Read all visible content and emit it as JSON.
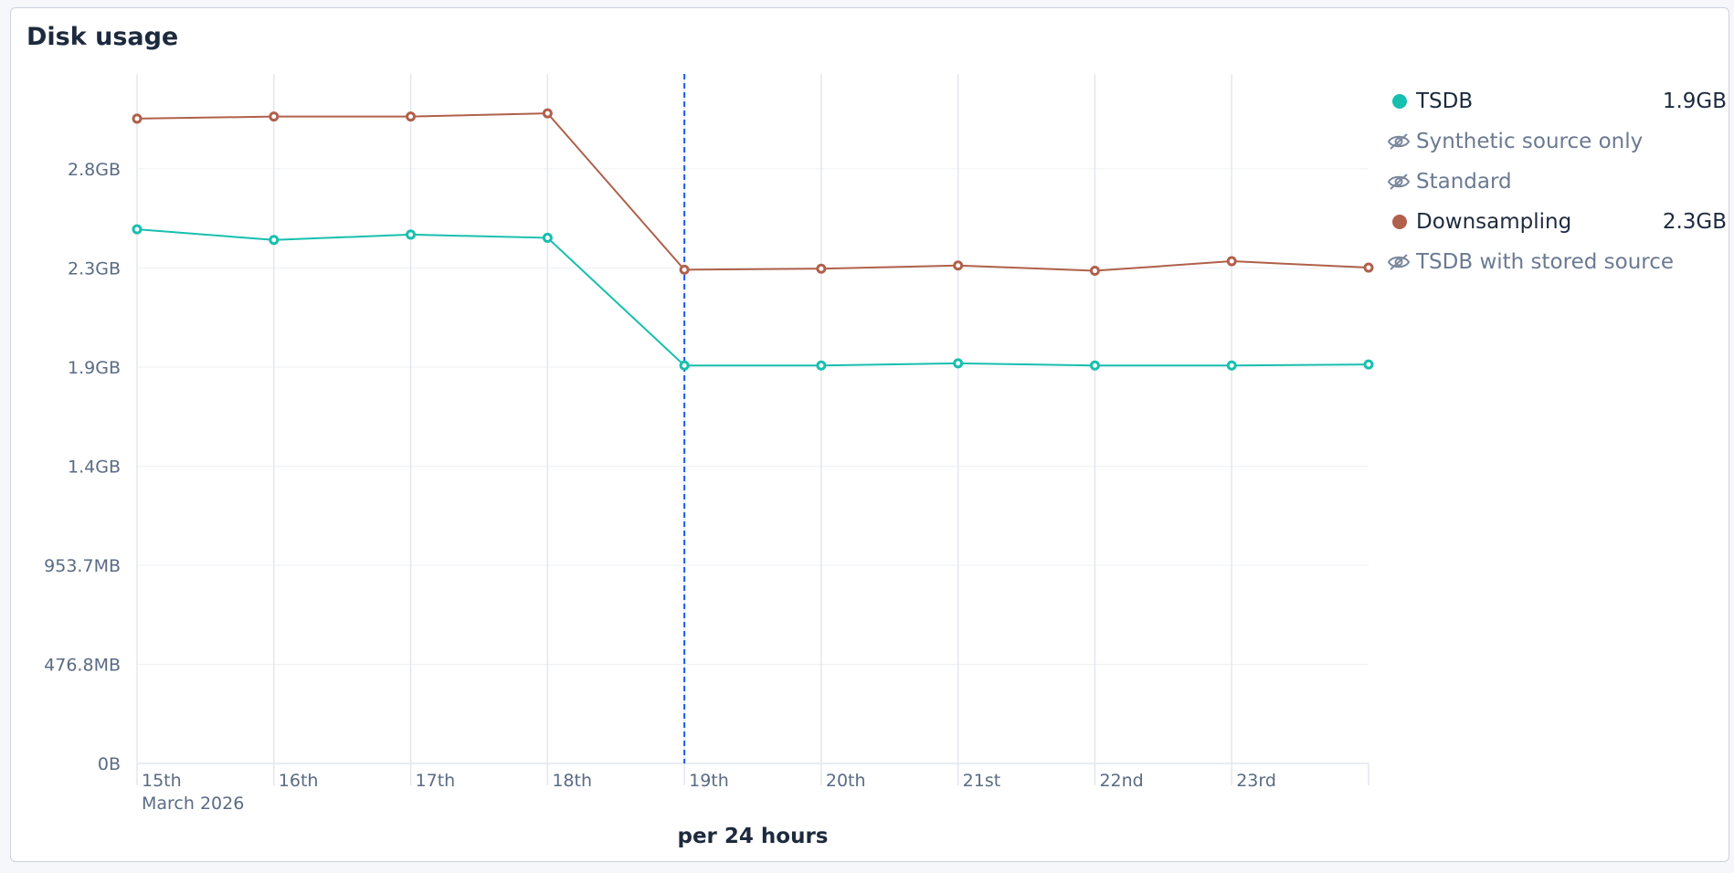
{
  "panel": {
    "title": "Disk usage"
  },
  "legend": [
    {
      "name": "TSDB",
      "value": "1.9GB",
      "visible": true,
      "color": "#17bfae"
    },
    {
      "name": "Synthetic source only",
      "value": "",
      "visible": false,
      "color": "#7a879c"
    },
    {
      "name": "Standard",
      "value": "",
      "visible": false,
      "color": "#7a879c"
    },
    {
      "name": "Downsampling",
      "value": "2.3GB",
      "visible": true,
      "color": "#b0604b"
    },
    {
      "name": "TSDB with stored source",
      "value": "",
      "visible": false,
      "color": "#7a879c"
    }
  ],
  "chart_data": {
    "type": "line",
    "title": "Disk usage",
    "xlabel": "per 24 hours",
    "ylabel": "",
    "x": [
      "2026-03-15",
      "2026-03-16",
      "2026-03-17",
      "2026-03-18",
      "2026-03-19",
      "2026-03-20",
      "2026-03-21",
      "2026-03-22",
      "2026-03-23",
      "2026-03-24"
    ],
    "x_tick_labels": [
      "15th",
      "16th",
      "17th",
      "18th",
      "19th",
      "20th",
      "21st",
      "22nd",
      "23rd"
    ],
    "x_tick_sublabel": "March 2026",
    "y_tick_labels": [
      "0B",
      "476.8MB",
      "953.7MB",
      "1.4GB",
      "1.9GB",
      "2.3GB",
      "2.8GB"
    ],
    "y_tick_values_gb": [
      0,
      0.4657,
      0.9313,
      1.397,
      1.8626,
      2.3283,
      2.794
    ],
    "ylim_gb": [
      0,
      3.24
    ],
    "y_unit": "GB",
    "series": [
      {
        "name": "TSDB",
        "color": "#17bfae",
        "values": [
          2.51,
          2.46,
          2.485,
          2.47,
          1.87,
          1.87,
          1.88,
          1.87,
          1.87,
          1.875
        ]
      },
      {
        "name": "Downsampling",
        "color": "#b0604b",
        "values": [
          3.03,
          3.04,
          3.04,
          3.055,
          2.32,
          2.325,
          2.34,
          2.315,
          2.36,
          2.33
        ]
      }
    ],
    "hidden_series": [
      "Synthetic source only",
      "Standard",
      "TSDB with stored source"
    ],
    "cursor_x": "2026-03-19",
    "legend_position": "right",
    "grid": true
  }
}
